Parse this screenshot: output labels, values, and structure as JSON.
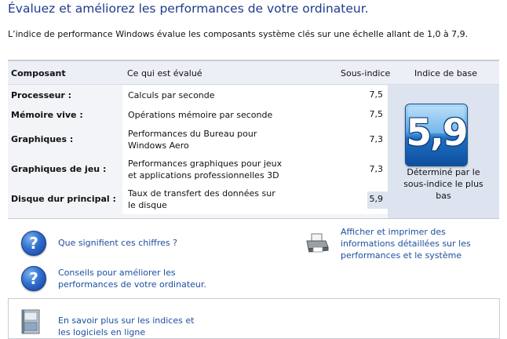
{
  "header": {
    "title": "Évaluez et améliorez les performances de votre ordinateur.",
    "subtitle": "L’indice de performance Windows évalue les composants système clés sur une échelle allant de 1,0 à 7,9."
  },
  "table": {
    "columns": {
      "component": "Composant",
      "rated": "Ce qui est évalué",
      "subscore": "Sous-indice",
      "base": "Indice de base"
    },
    "rows": [
      {
        "component": "Processeur :",
        "description": "Calculs par seconde",
        "subscore": "7,5"
      },
      {
        "component": "Mémoire vive :",
        "description": "Opérations mémoire par seconde",
        "subscore": "7,5"
      },
      {
        "component": "Graphiques :",
        "description": "Performances du Bureau pour Windows Aero",
        "subscore": "7,3"
      },
      {
        "component": "Graphiques de jeu :",
        "description": "Performances graphiques pour jeux et applications professionnelles 3D",
        "subscore": "7,3"
      },
      {
        "component": "Disque dur principal :",
        "description": "Taux de transfert des données sur le disque",
        "subscore": "5,9"
      }
    ],
    "base_score": "5,9",
    "base_caption": "Déterminé par le sous-indice le plus bas"
  },
  "links": {
    "what_numbers": "Que signifient ces chiffres ?",
    "tips": "Conseils pour améliorer les performances de votre ordinateur.",
    "print": "Afficher et imprimer des informations détaillées sur les performances et le système",
    "learn_more": "En savoir plus sur les indices et les logiciels en ligne"
  },
  "icons": {
    "help": "help-icon",
    "printer": "printer-icon",
    "book": "book-icon"
  },
  "colors": {
    "title": "#1e3b8a",
    "link": "#1c4fa0",
    "score_tile": "#2f7bd0",
    "score_column": "#dde4f0"
  }
}
